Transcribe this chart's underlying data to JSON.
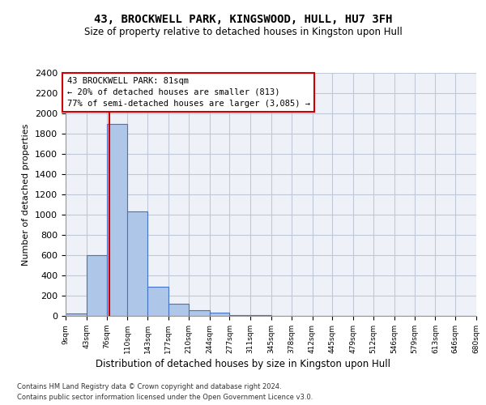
{
  "title1": "43, BROCKWELL PARK, KINGSWOOD, HULL, HU7 3FH",
  "title2": "Size of property relative to detached houses in Kingston upon Hull",
  "xlabel": "Distribution of detached houses by size in Kingston upon Hull",
  "ylabel": "Number of detached properties",
  "bin_edges": [
    9,
    43,
    76,
    110,
    143,
    177,
    210,
    244,
    277,
    311,
    345,
    378,
    412,
    445,
    479,
    512,
    546,
    579,
    613,
    646,
    680
  ],
  "bar_heights": [
    25,
    600,
    1900,
    1030,
    290,
    120,
    55,
    30,
    10,
    5,
    3,
    2,
    1,
    1,
    1,
    0,
    0,
    0,
    0,
    0
  ],
  "bar_color": "#aec6e8",
  "bar_edge_color": "#4472c4",
  "red_line_x": 81,
  "annotation_title": "43 BROCKWELL PARK: 81sqm",
  "annotation_line1": "← 20% of detached houses are smaller (813)",
  "annotation_line2": "77% of semi-detached houses are larger (3,085) →",
  "annotation_box_color": "#ffffff",
  "annotation_border_color": "#cc0000",
  "red_line_color": "#cc0000",
  "ylim": [
    0,
    2400
  ],
  "yticks": [
    0,
    200,
    400,
    600,
    800,
    1000,
    1200,
    1400,
    1600,
    1800,
    2000,
    2200,
    2400
  ],
  "footer1": "Contains HM Land Registry data © Crown copyright and database right 2024.",
  "footer2": "Contains public sector information licensed under the Open Government Licence v3.0.",
  "grid_color": "#c0c8d8",
  "background_color": "#eef2f8"
}
